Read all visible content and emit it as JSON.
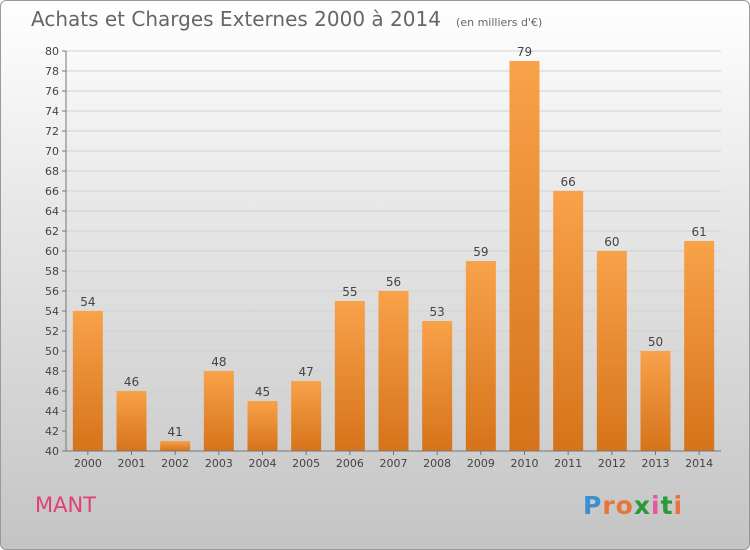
{
  "chart_data": {
    "type": "bar",
    "title": "Achats et Charges Externes 2000 à 2014",
    "subtitle": "(en milliers d'€)",
    "xlabel": "",
    "ylabel": "",
    "categories": [
      "2000",
      "2001",
      "2002",
      "2003",
      "2004",
      "2005",
      "2006",
      "2007",
      "2008",
      "2009",
      "2010",
      "2011",
      "2012",
      "2013",
      "2014"
    ],
    "values": [
      54,
      46,
      41,
      48,
      45,
      47,
      55,
      56,
      53,
      59,
      79,
      66,
      60,
      50,
      61
    ],
    "ylim": [
      40,
      80
    ],
    "ytick_step": 2,
    "grid": true,
    "legend": "none",
    "bar_color_top": "#f8a24a",
    "bar_color_bottom": "#d6731a"
  },
  "footer": {
    "commune": "MANT",
    "logo_letters": [
      "P",
      "r",
      "o",
      "x",
      "i",
      "t",
      "i"
    ],
    "logo_colors": [
      "#3b8fd0",
      "#e7743a",
      "#e7743a",
      "#2a9a3a",
      "#e05aa0",
      "#2a9a3a",
      "#e7743a"
    ],
    "commune_color": "#e0407a"
  }
}
